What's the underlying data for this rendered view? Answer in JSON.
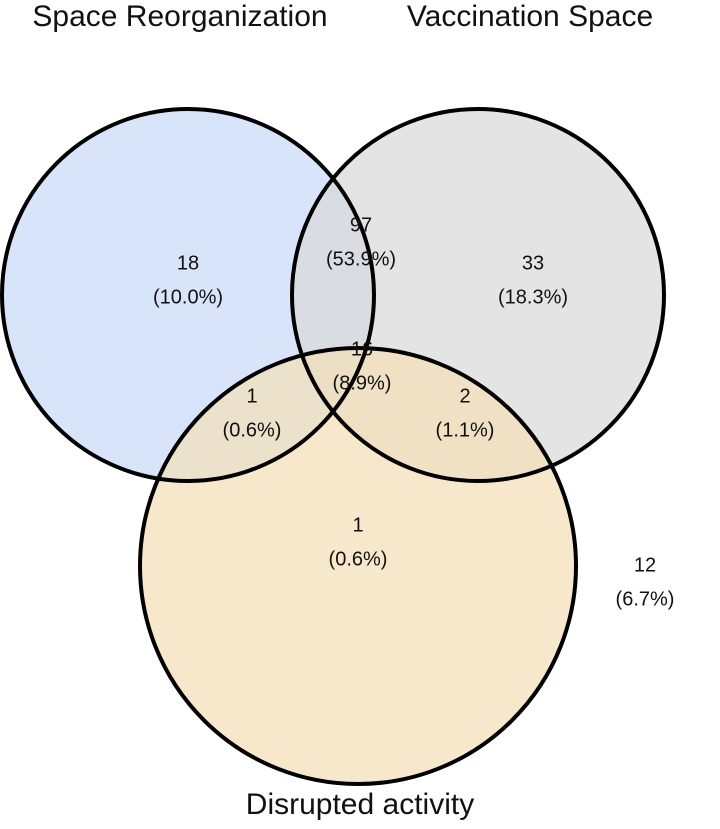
{
  "chart_data": {
    "type": "venn",
    "sets": [
      {
        "name": "Space Reorganization",
        "color": "#c9daf8"
      },
      {
        "name": "Vaccination Space",
        "color": "#d9d9d9"
      },
      {
        "name": "Disrupted activity",
        "color": "#f4dfb8"
      }
    ],
    "values": [
      18,
      33,
      1,
      97,
      1,
      2,
      16,
      12
    ],
    "percent_values": [
      10.0,
      18.3,
      0.6,
      53.9,
      0.6,
      1.1,
      8.9,
      6.7
    ],
    "value_labels": [
      "(10.0%)",
      "(18.3%)",
      "(0.6%)",
      "(53.9%)",
      "(0.6%)",
      "(1.1%)",
      "(8.9%)",
      "(6.7%)"
    ]
  }
}
